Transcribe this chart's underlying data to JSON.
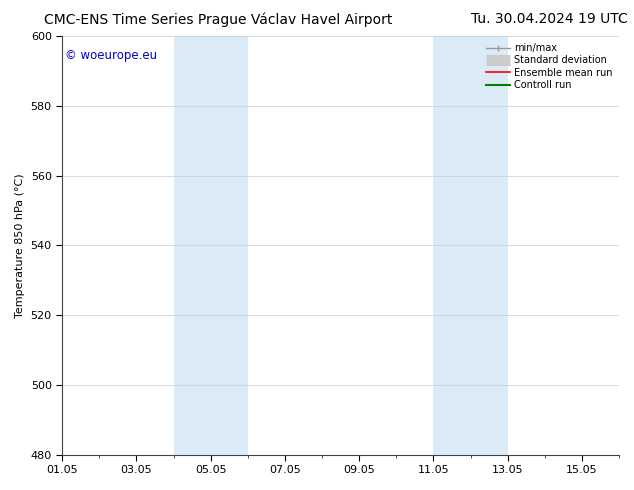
{
  "title_left": "CMC-ENS Time Series Prague Václav Havel Airport",
  "title_right": "Tu. 30.04.2024 19 UTC",
  "ylabel": "Temperature 850 hPa (°C)",
  "ylim": [
    480,
    600
  ],
  "yticks": [
    480,
    500,
    520,
    540,
    560,
    580,
    600
  ],
  "xtick_labels": [
    "01.05",
    "03.05",
    "05.05",
    "07.05",
    "09.05",
    "11.05",
    "13.05",
    "15.05"
  ],
  "xtick_positions": [
    1,
    3,
    5,
    7,
    9,
    11,
    13,
    15
  ],
  "xlim": [
    1,
    16
  ],
  "shaded_regions": [
    {
      "x_start": 4,
      "x_end": 6,
      "color": "#daeaf7"
    },
    {
      "x_start": 11,
      "x_end": 13,
      "color": "#daeaf7"
    }
  ],
  "watermark_text": "© woeurope.eu",
  "watermark_color": "#0000cc",
  "legend_items": [
    {
      "label": "min/max",
      "color": "#999999",
      "lw": 1.0,
      "style": "minmax"
    },
    {
      "label": "Standard deviation",
      "color": "#cccccc",
      "lw": 8,
      "style": "stddev"
    },
    {
      "label": "Ensemble mean run",
      "color": "#ff0000",
      "lw": 1.2,
      "style": "line"
    },
    {
      "label": "Controll run",
      "color": "#008000",
      "lw": 1.5,
      "style": "line"
    }
  ],
  "bg_color": "#ffffff",
  "plot_bg_color": "#ffffff",
  "grid_color": "#cccccc",
  "title_fontsize": 10,
  "axis_fontsize": 8,
  "tick_fontsize": 8
}
